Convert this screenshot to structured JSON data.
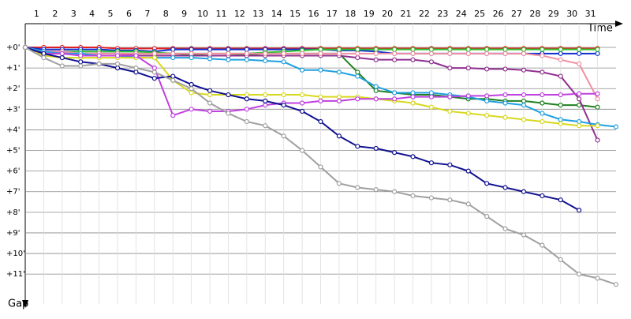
{
  "chart_data": {
    "type": "line",
    "x_label": "Time",
    "y_label": "Gap",
    "x": [
      0,
      1,
      2,
      3,
      4,
      5,
      6,
      7,
      8,
      9,
      10,
      11,
      12,
      13,
      14,
      15,
      16,
      17,
      18,
      19,
      20,
      21,
      22,
      23,
      24,
      25,
      26,
      27,
      28,
      29,
      30,
      31,
      32
    ],
    "xlim": [
      0,
      32
    ],
    "xticks": [
      1,
      2,
      3,
      4,
      5,
      6,
      7,
      8,
      9,
      10,
      11,
      12,
      13,
      14,
      15,
      16,
      17,
      18,
      19,
      20,
      21,
      22,
      23,
      24,
      25,
      26,
      27,
      28,
      29,
      30,
      31
    ],
    "ylim": [
      -1.15,
      12.45
    ],
    "y_inverted": true,
    "yticks": [
      {
        "value": 0,
        "label": "+0'"
      },
      {
        "value": 1,
        "label": "+1'"
      },
      {
        "value": 2,
        "label": "+2'"
      },
      {
        "value": 3,
        "label": "+3'"
      },
      {
        "value": 4,
        "label": "+4'"
      },
      {
        "value": 5,
        "label": "+5'"
      },
      {
        "value": 6,
        "label": "+6'"
      },
      {
        "value": 7,
        "label": "+7'"
      },
      {
        "value": 8,
        "label": "+8'"
      },
      {
        "value": 9,
        "label": "+9'"
      },
      {
        "value": 10,
        "label": "+10'"
      },
      {
        "value": 11,
        "label": "+11'"
      }
    ],
    "grid": true,
    "series": [
      {
        "color": "#e02020",
        "values": [
          0,
          0,
          0,
          0,
          0,
          0.05,
          0.05,
          0.05,
          0.05,
          0.05,
          0.05,
          0.05,
          0.05,
          0.05,
          0.05,
          0.05,
          0.05,
          0.05,
          0.05,
          0.05,
          0.05,
          0.05,
          0.05,
          0.05,
          0.05,
          0.05,
          0.05,
          0.05,
          0.05,
          0.05,
          0.05,
          0.05,
          null
        ]
      },
      {
        "color": "#1030d0",
        "values": [
          0,
          0.1,
          0.1,
          0.1,
          0.1,
          0.15,
          0.15,
          0.2,
          0.1,
          0.1,
          0.1,
          0.1,
          0.1,
          0.1,
          0.1,
          0.1,
          0.1,
          0.15,
          0.15,
          0.2,
          0.3,
          0.3,
          0.3,
          0.3,
          0.3,
          0.3,
          0.3,
          0.3,
          0.3,
          0.3,
          0.3,
          0.3,
          null
        ]
      },
      {
        "color": "#30c030",
        "values": [
          0,
          0.2,
          0.2,
          0.2,
          0.2,
          0.2,
          0.2,
          0.25,
          0.3,
          0.3,
          0.3,
          0.3,
          0.3,
          0.25,
          0.2,
          0.15,
          0.1,
          0.1,
          0.1,
          0.1,
          0.1,
          0.1,
          0.1,
          0.1,
          0.1,
          0.1,
          0.1,
          0.1,
          0.1,
          0.1,
          0.1,
          0.1,
          null
        ]
      },
      {
        "color": "#208020",
        "values": [
          0,
          0.3,
          0.3,
          0.3,
          0.3,
          0.3,
          0.3,
          0.3,
          0.3,
          0.35,
          0.4,
          0.4,
          0.35,
          0.3,
          0.3,
          0.3,
          0.3,
          0.3,
          1.2,
          2.1,
          2.2,
          2.3,
          2.3,
          2.4,
          2.5,
          2.5,
          2.6,
          2.6,
          2.7,
          2.8,
          2.8,
          2.9,
          null
        ]
      },
      {
        "color": "#903090",
        "values": [
          0,
          0.2,
          0.2,
          0.3,
          0.3,
          0.3,
          0.4,
          0.4,
          0.4,
          0.4,
          0.4,
          0.4,
          0.4,
          0.4,
          0.4,
          0.4,
          0.4,
          0.4,
          0.5,
          0.6,
          0.6,
          0.6,
          0.7,
          1.0,
          1.0,
          1.05,
          1.05,
          1.1,
          1.2,
          1.4,
          2.5,
          4.5,
          null
        ]
      },
      {
        "color": "#f090a0",
        "values": [
          0,
          0.2,
          0.2,
          0.3,
          0.3,
          0.3,
          0.3,
          0.3,
          0.3,
          0.3,
          0.3,
          0.3,
          0.3,
          0.3,
          0.3,
          0.3,
          0.3,
          0.3,
          0.3,
          0.3,
          0.3,
          0.3,
          0.3,
          0.3,
          0.3,
          0.3,
          0.3,
          0.3,
          0.4,
          0.6,
          0.8,
          2.5,
          null
        ]
      },
      {
        "color": "#20a0e0",
        "values": [
          0,
          0.2,
          0.3,
          0.3,
          0.4,
          0.4,
          0.5,
          0.5,
          0.5,
          0.5,
          0.55,
          0.6,
          0.6,
          0.65,
          0.7,
          1.1,
          1.1,
          1.2,
          1.4,
          1.9,
          2.2,
          2.2,
          2.2,
          2.3,
          2.4,
          2.6,
          2.7,
          2.8,
          3.2,
          3.5,
          3.6,
          3.75,
          3.85
        ]
      },
      {
        "color": "#d8d820",
        "values": [
          0,
          0.4,
          0.5,
          0.5,
          0.5,
          0.5,
          0.5,
          0.5,
          1.6,
          2.2,
          2.3,
          2.3,
          2.3,
          2.3,
          2.3,
          2.3,
          2.4,
          2.4,
          2.4,
          2.5,
          2.6,
          2.7,
          2.9,
          3.1,
          3.2,
          3.3,
          3.4,
          3.5,
          3.6,
          3.7,
          3.8,
          3.8,
          null
        ]
      },
      {
        "color": "#c040e0",
        "values": [
          0,
          0.3,
          0.3,
          0.4,
          0.4,
          0.4,
          0.4,
          1.0,
          3.3,
          3.0,
          3.1,
          3.1,
          3.0,
          2.8,
          2.7,
          2.7,
          2.6,
          2.6,
          2.5,
          2.5,
          2.5,
          2.4,
          2.4,
          2.4,
          2.35,
          2.35,
          2.3,
          2.3,
          2.3,
          2.3,
          2.25,
          2.25,
          null
        ]
      },
      {
        "color": "#101090",
        "values": [
          0,
          0.3,
          0.5,
          0.7,
          0.8,
          1.0,
          1.2,
          1.5,
          1.4,
          1.8,
          2.1,
          2.3,
          2.5,
          2.6,
          2.8,
          3.1,
          3.6,
          4.3,
          4.8,
          4.9,
          5.1,
          5.3,
          5.6,
          5.7,
          6.0,
          6.6,
          6.8,
          7.0,
          7.2,
          7.4,
          7.9,
          null,
          null
        ]
      },
      {
        "color": "#a0a0a0",
        "values": [
          0,
          0.5,
          0.9,
          0.9,
          0.8,
          0.8,
          1.0,
          1.2,
          1.6,
          2.0,
          2.7,
          3.2,
          3.6,
          3.8,
          4.3,
          5.0,
          5.8,
          6.6,
          6.8,
          6.9,
          7.0,
          7.2,
          7.3,
          7.4,
          7.6,
          8.2,
          8.8,
          9.1,
          9.6,
          10.3,
          11.0,
          11.2,
          11.5
        ]
      }
    ]
  }
}
